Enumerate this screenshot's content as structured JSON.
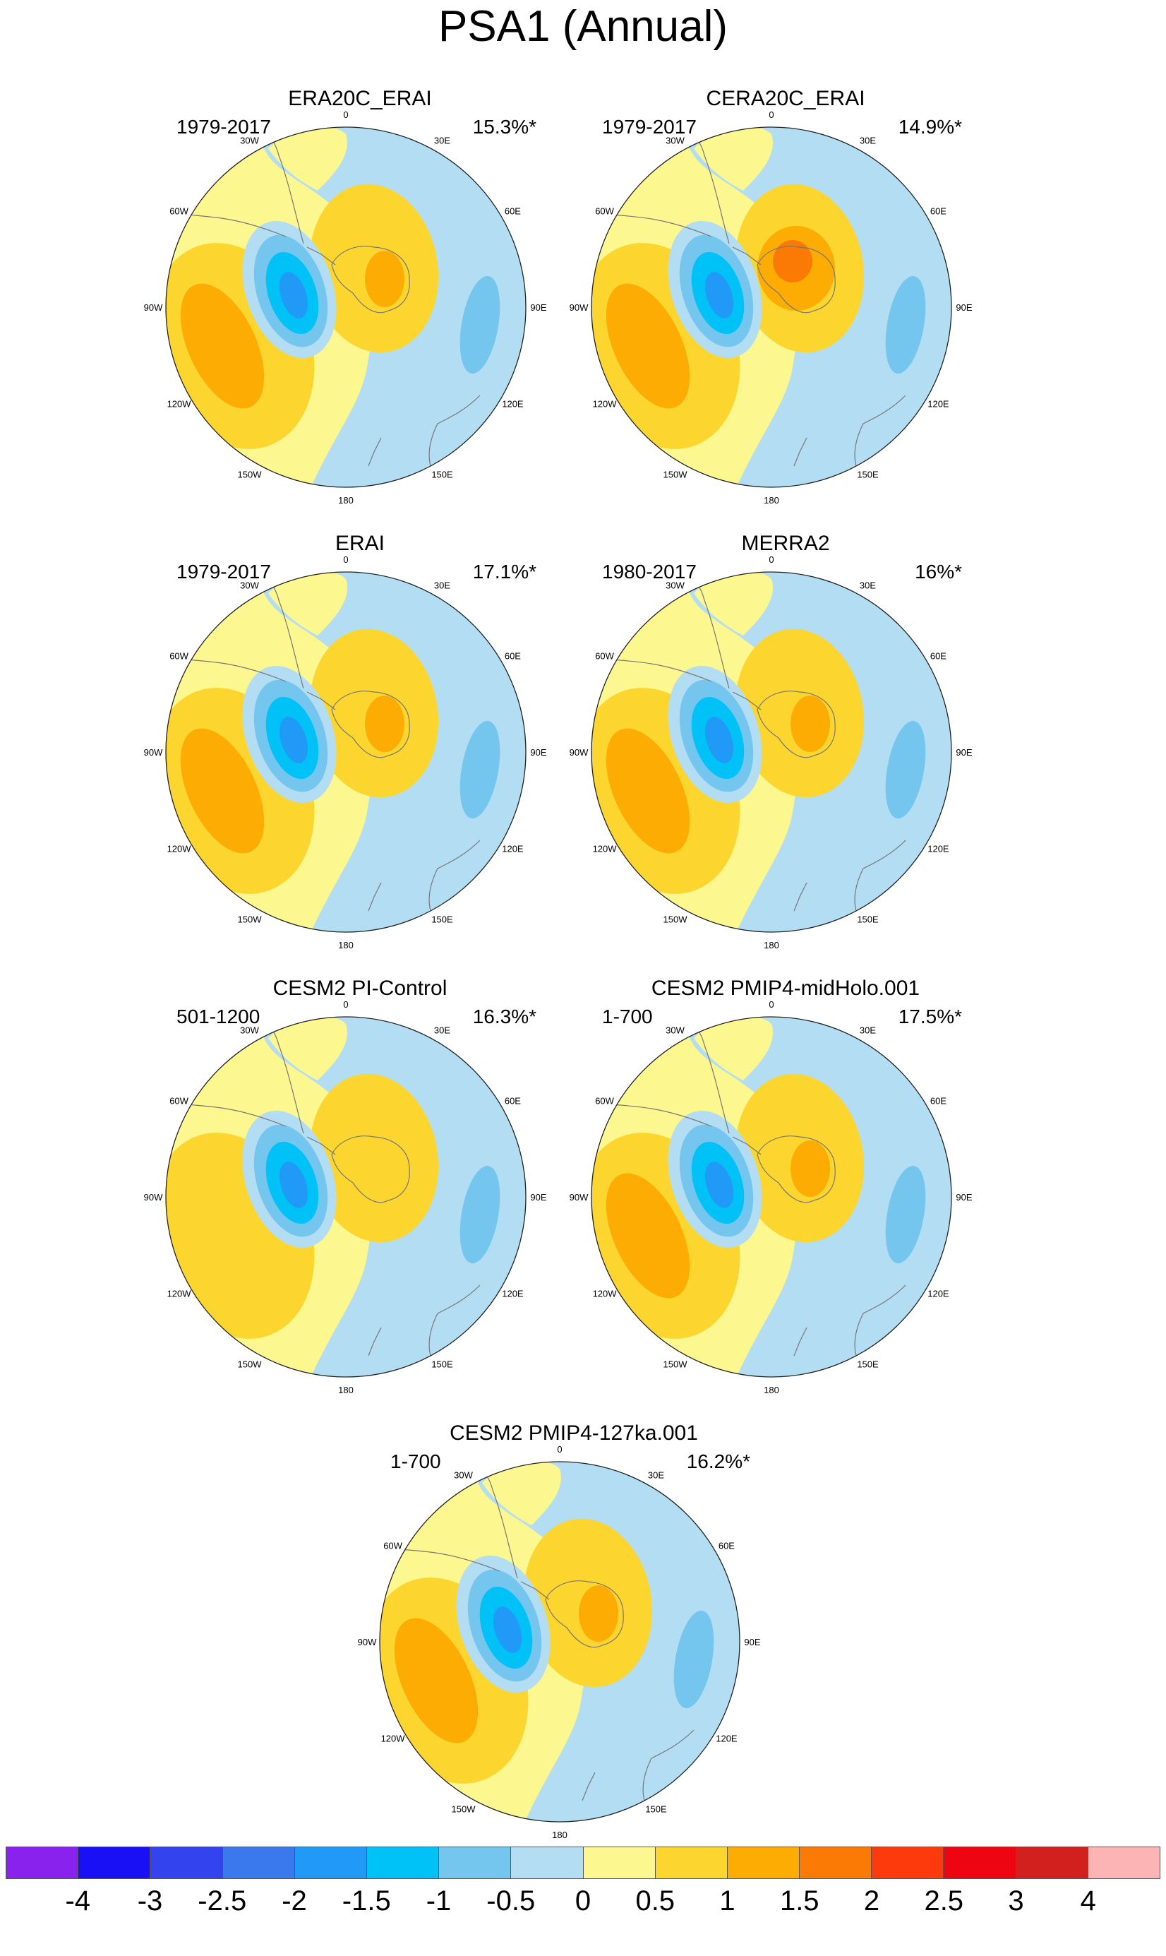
{
  "title": "PSA1 (Annual)",
  "longitude_labels": [
    "0",
    "30E",
    "60E",
    "90E",
    "120E",
    "150E",
    "180",
    "150W",
    "120W",
    "90W",
    "60W",
    "30W"
  ],
  "panels": [
    {
      "title": "ERA20C_ERAI",
      "period": "1979-2017",
      "variance": "15.3%*"
    },
    {
      "title": "CERA20C_ERAI",
      "period": "1979-2017",
      "variance": "14.9%*"
    },
    {
      "title": "ERAI",
      "period": "1979-2017",
      "variance": "17.1%*"
    },
    {
      "title": "MERRA2",
      "period": "1980-2017",
      "variance": "16%*"
    },
    {
      "title": "CESM2 PI-Control",
      "period": "501-1200",
      "variance": "16.3%*"
    },
    {
      "title": "CESM2 PMIP4-midHolo.001",
      "period": "1-700",
      "variance": "17.5%*"
    },
    {
      "title": "CESM2 PMIP4-127ka.001",
      "period": "1-700",
      "variance": "16.2%*"
    }
  ],
  "colorbar": {
    "labels": [
      "-4",
      "-3",
      "-2.5",
      "-2",
      "-1.5",
      "-1",
      "-0.5",
      "0",
      "0.5",
      "1",
      "1.5",
      "2",
      "2.5",
      "3",
      "4"
    ],
    "colors": [
      "#8a22ee",
      "#1a10f6",
      "#3344ee",
      "#3a78ee",
      "#2199f6",
      "#00c2f6",
      "#75c6ef",
      "#b3ddf2",
      "#fdf78f",
      "#fcd62e",
      "#fdac03",
      "#fb7a05",
      "#fd3a0c",
      "#ee0512",
      "#d1201e",
      "#fdb4b4"
    ]
  },
  "palette": {
    "light_blue": "#b3ddf2",
    "mid_blue": "#75c6ef",
    "cyan": "#00c2f6",
    "blue": "#2199f6",
    "light_yellow": "#fdf78f",
    "yellow": "#fcd62e",
    "orange": "#fdac03",
    "dark_orange": "#fb7a05",
    "coast": "#777777"
  }
}
